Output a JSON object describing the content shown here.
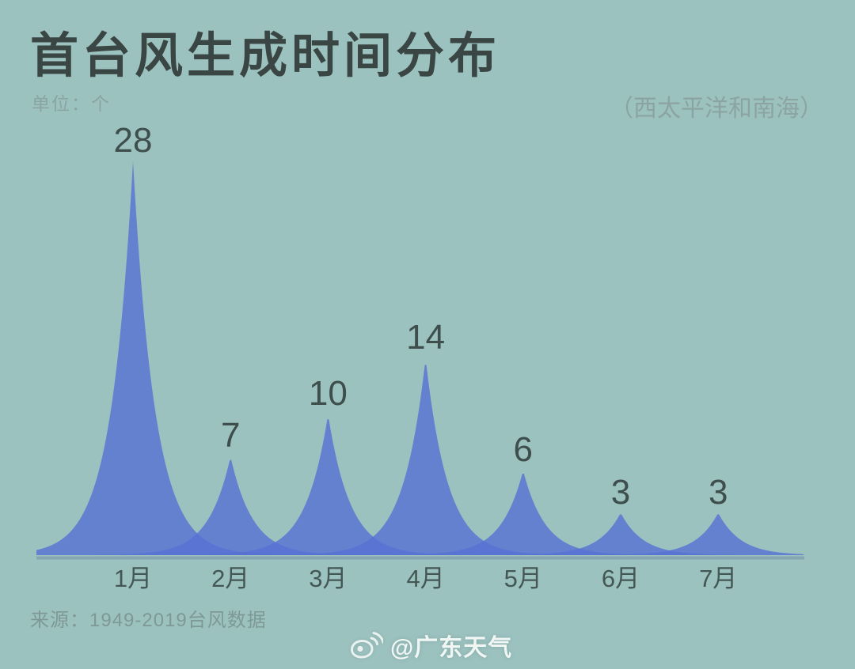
{
  "header": {
    "title": "首台风生成时间分布",
    "unit_label": "单位：个",
    "region_label": "（西太平洋和南海）"
  },
  "footer": {
    "source": "来源：1949-2019台风数据",
    "watermark_handle": "@广东天气",
    "watermark_icon": "weibo-icon"
  },
  "colors": {
    "background": "#9cc2c0",
    "peak_fill": "#5670d3",
    "peak_fill_opacity": 0.8,
    "peak_overlap": "#4f64c8",
    "axis_line": "#6e8ca4",
    "title_text": "#3a4643",
    "value_text": "#3d4e4c",
    "month_text": "#435755",
    "muted_text": "#8aa5a1",
    "source_text": "#7e9995",
    "watermark_text": "#f8fcfa"
  },
  "chart_data": {
    "type": "area",
    "categories": [
      "1月",
      "2月",
      "3月",
      "4月",
      "5月",
      "6月",
      "7月"
    ],
    "values": [
      28,
      7,
      10,
      14,
      6,
      3,
      3
    ],
    "title": "首台风生成时间分布",
    "unit": "个",
    "region": "西太平洋和南海",
    "ylim": [
      0,
      30
    ],
    "grid": false,
    "legend": false,
    "value_labels_position": "above-peaks",
    "peak_style": "sharp-spike-overlapping-tails"
  }
}
